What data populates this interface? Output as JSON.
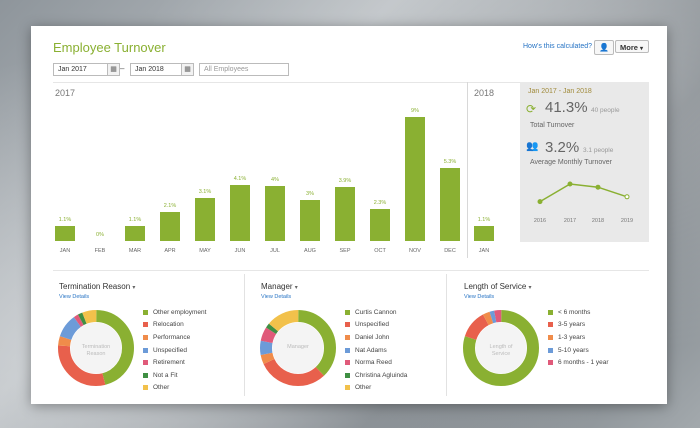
{
  "header": {
    "title": "Employee Turnover",
    "how_link": "How's this calculated?",
    "more_label": "More"
  },
  "filters": {
    "start_date": "Jan 2017",
    "end_date": "Jan 2018",
    "dash": "–",
    "employees_placeholder": "All Employees"
  },
  "chart_data": {
    "type": "bar",
    "categories": [
      "JAN",
      "FEB",
      "MAR",
      "APR",
      "MAY",
      "JUN",
      "JUL",
      "AUG",
      "SEP",
      "OCT",
      "NOV",
      "DEC",
      "JAN"
    ],
    "values": [
      1.1,
      0,
      1.1,
      2.1,
      3.1,
      4.1,
      4,
      3,
      3.9,
      2.3,
      9,
      5.3,
      1.1
    ],
    "data_labels": [
      "1.1%",
      "0%",
      "1.1%",
      "2.1%",
      "3.1%",
      "4.1%",
      "4%",
      "3%",
      "3.9%",
      "2.3%",
      "9%",
      "5.3%",
      "1.1%"
    ],
    "groups": [
      "2017",
      "2018"
    ],
    "ylim": [
      0,
      9
    ]
  },
  "summary": {
    "range": "Jan 2017 - Jan 2018",
    "total_pct": "41.3%",
    "total_people": "40 people",
    "total_label": "Total Turnover",
    "avg_pct": "3.2%",
    "avg_people": "3.1 people",
    "avg_label": "Average Monthly Turnover",
    "trend_years": [
      "2016",
      "2017",
      "2018",
      "2019"
    ],
    "trend_values": [
      2.4,
      3.5,
      3.3,
      2.7
    ]
  },
  "panels": [
    {
      "title": "Termination Reason",
      "view": "View Details",
      "center": [
        "Termination",
        "Reason"
      ],
      "items": [
        {
          "label": "Other employment",
          "color": "#8ab032",
          "value": 46
        },
        {
          "label": "Relocation",
          "color": "#e8604c",
          "value": 30
        },
        {
          "label": "Performance",
          "color": "#f08c4a",
          "value": 4
        },
        {
          "label": "Unspecified",
          "color": "#6c9bd8",
          "value": 10
        },
        {
          "label": "Retirement",
          "color": "#e05a7a",
          "value": 2
        },
        {
          "label": "Not a Fit",
          "color": "#3f8f43",
          "value": 2
        },
        {
          "label": "Other",
          "color": "#f2c14b",
          "value": 6
        }
      ]
    },
    {
      "title": "Manager",
      "view": "View Details",
      "center": [
        "Manager"
      ],
      "items": [
        {
          "label": "Curtis Cannon",
          "color": "#8ab032",
          "value": 38
        },
        {
          "label": "Unspecified",
          "color": "#e8604c",
          "value": 30
        },
        {
          "label": "Daniel John",
          "color": "#f08c4a",
          "value": 4
        },
        {
          "label": "Nat Adams",
          "color": "#6c9bd8",
          "value": 6
        },
        {
          "label": "Norma Reed",
          "color": "#e05a7a",
          "value": 6
        },
        {
          "label": "Christina Agluinda",
          "color": "#3f8f43",
          "value": 2
        },
        {
          "label": "Other",
          "color": "#f2c14b",
          "value": 14
        }
      ]
    },
    {
      "title": "Length of Service",
      "view": "View Details",
      "center": [
        "Length of",
        "Service"
      ],
      "items": [
        {
          "label": "< 6 months",
          "color": "#8ab032",
          "value": 80
        },
        {
          "label": "3-5 years",
          "color": "#e8604c",
          "value": 12
        },
        {
          "label": "1-3 years",
          "color": "#f08c4a",
          "value": 3
        },
        {
          "label": "5-10 years",
          "color": "#6c9bd8",
          "value": 2
        },
        {
          "label": "6 months - 1 year",
          "color": "#e05a7a",
          "value": 3
        }
      ]
    }
  ]
}
